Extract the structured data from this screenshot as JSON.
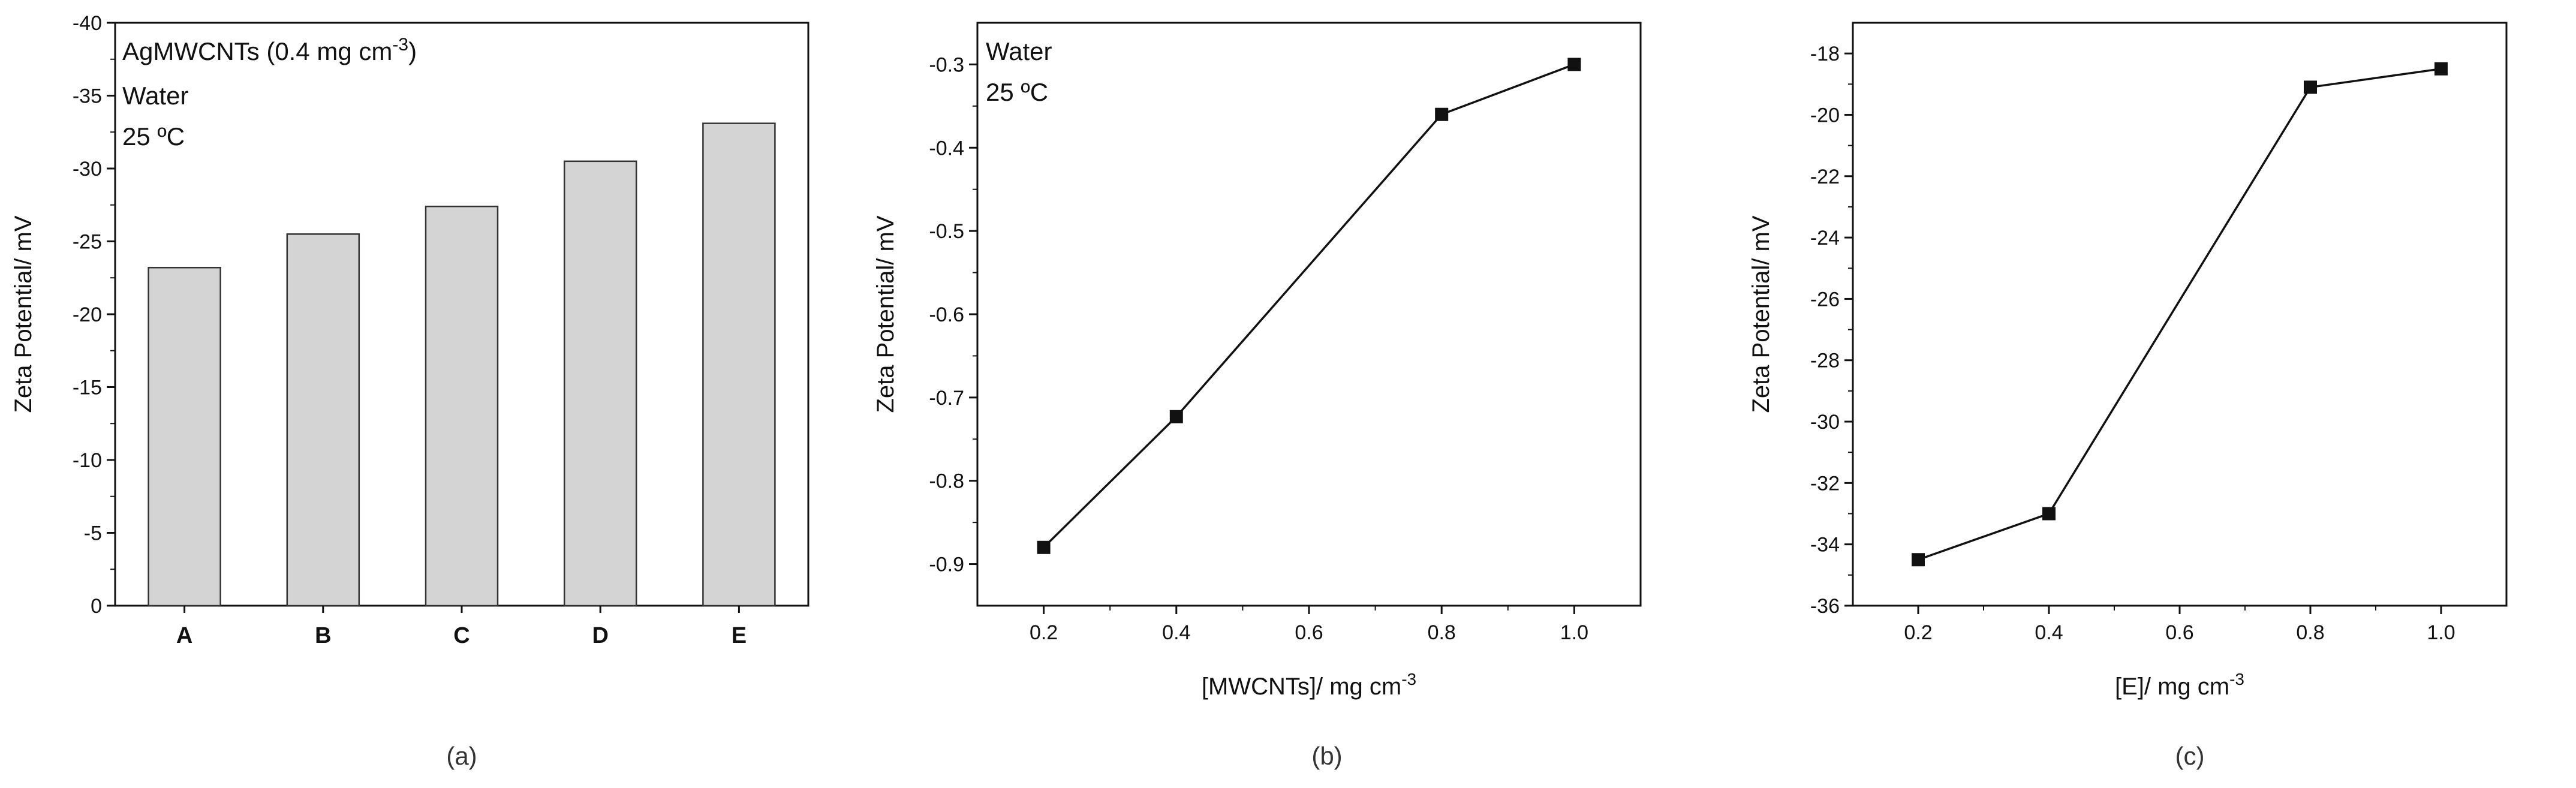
{
  "chart_data": [
    {
      "panel": "(a)",
      "type": "bar",
      "ylabel": "Zeta Potential/ mV",
      "xlabel": "",
      "ylim": [
        0,
        -40
      ],
      "yticks": [
        "0",
        "-5",
        "-10",
        "-15",
        "-20",
        "-25",
        "-30",
        "-35",
        "-40"
      ],
      "categories": [
        "A",
        "B",
        "C",
        "D",
        "E"
      ],
      "values": [
        -23.2,
        -25.5,
        -27.4,
        -30.5,
        -33.1
      ],
      "annotations": [
        "AgMWCNTs (0.4 mg cm",
        "-3",
        ")",
        "Water",
        "25 ºC"
      ],
      "bar_color": "#d4d4d4"
    },
    {
      "panel": "(b)",
      "type": "line",
      "ylabel": "Zeta Potential/ mV",
      "xlabel": [
        "[MWCNTs]/ mg cm",
        "-3"
      ],
      "xlim": [
        0.1,
        1.1
      ],
      "ylim": [
        -0.95,
        -0.25
      ],
      "xticks": [
        "0.2",
        "0.4",
        "0.6",
        "0.8",
        "1.0"
      ],
      "yticks": [
        "-0.9",
        "-0.8",
        "-0.7",
        "-0.6",
        "-0.5",
        "-0.4",
        "-0.3"
      ],
      "x": [
        0.2,
        0.4,
        0.8,
        1.0
      ],
      "y": [
        -0.88,
        -0.723,
        -0.36,
        -0.3
      ],
      "annotations": [
        "Water",
        "25 ºC"
      ],
      "marker": "square"
    },
    {
      "panel": "(c)",
      "type": "line",
      "ylabel": "Zeta Potential/ mV",
      "xlabel": [
        "[E]/ mg cm",
        "-3"
      ],
      "xlim": [
        0.1,
        1.1
      ],
      "ylim": [
        -36,
        -17
      ],
      "xticks": [
        "0.2",
        "0.4",
        "0.6",
        "0.8",
        "1.0"
      ],
      "yticks": [
        "-36",
        "-34",
        "-32",
        "-30",
        "-28",
        "-26",
        "-24",
        "-22",
        "-20",
        "-18"
      ],
      "x": [
        0.2,
        0.4,
        0.8,
        1.0
      ],
      "y": [
        -34.5,
        -33.0,
        -19.1,
        -18.5
      ],
      "annotations": [],
      "marker": "square"
    }
  ]
}
